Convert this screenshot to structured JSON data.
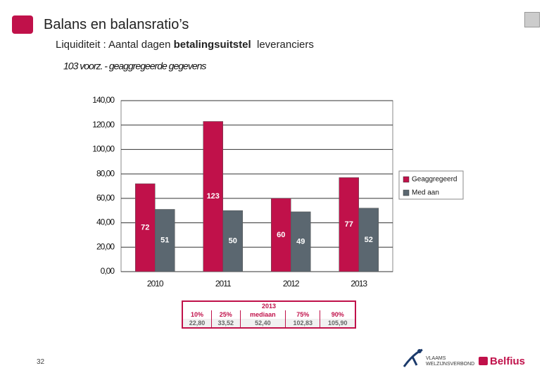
{
  "header": {
    "title": "Balans en balansratio’s",
    "subtitle": [
      "Liquiditeit : Aantal dagen ",
      "betalingsuitstel",
      "  leveranciers"
    ]
  },
  "chart_data": {
    "type": "bar",
    "title": "103 voorz. - geaggregeerde gegevens",
    "categories": [
      "2010",
      "2011",
      "2012",
      "2013"
    ],
    "series": [
      {
        "name": "Geaggregeerd",
        "color": "#c0114a",
        "values": [
          72,
          123,
          60,
          77
        ]
      },
      {
        "name": "Med aan",
        "color": "#5b6770",
        "values": [
          51,
          50,
          49,
          52
        ]
      }
    ],
    "ylim": [
      0,
      140
    ],
    "yticks": [
      {
        "value": 0,
        "label": "0,00"
      },
      {
        "value": 20,
        "label": "20,00"
      },
      {
        "value": 40,
        "label": "40,00"
      },
      {
        "value": 60,
        "label": "60,00"
      },
      {
        "value": 80,
        "label": "80,00"
      },
      {
        "value": 100,
        "label": "100,00"
      },
      {
        "value": 120,
        "label": "120,00"
      },
      {
        "value": 140,
        "label": "140,00"
      }
    ],
    "grid": true,
    "legend": "right"
  },
  "table": {
    "title": "2013",
    "columns": [
      "10%",
      "25%",
      "mediaan",
      "75%",
      "90%"
    ],
    "values": [
      "22,80",
      "33,52",
      "52,40",
      "102,83",
      "105,90"
    ]
  },
  "footer": {
    "page": "32",
    "logo1": "VLAAMS WELZIJNSVERBOND",
    "logo2": "Belfius"
  }
}
